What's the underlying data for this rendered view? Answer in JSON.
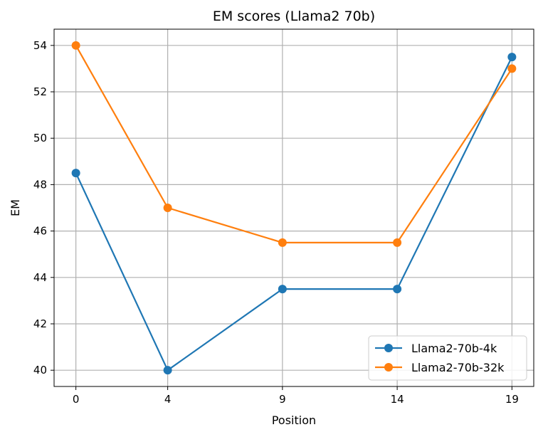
{
  "chart_data": {
    "type": "line",
    "title": "EM scores (Llama2 70b)",
    "xlabel": "Position",
    "ylabel": "EM",
    "x": [
      0,
      4,
      9,
      14,
      19
    ],
    "xticks": [
      "0",
      "4",
      "9",
      "14",
      "19"
    ],
    "yticks": [
      "40",
      "42",
      "44",
      "46",
      "48",
      "50",
      "52",
      "54"
    ],
    "xlim": [
      -0.95,
      19.95
    ],
    "ylim": [
      39.3,
      54.7
    ],
    "grid": true,
    "legend_position": "lower-right",
    "series": [
      {
        "name": "Llama2-70b-4k",
        "color": "#1f77b4",
        "values": [
          48.5,
          40.0,
          43.5,
          43.5,
          53.5
        ]
      },
      {
        "name": "Llama2-70b-32k",
        "color": "#ff7f0e",
        "values": [
          54.0,
          47.0,
          45.5,
          45.5,
          53.0
        ]
      }
    ]
  }
}
